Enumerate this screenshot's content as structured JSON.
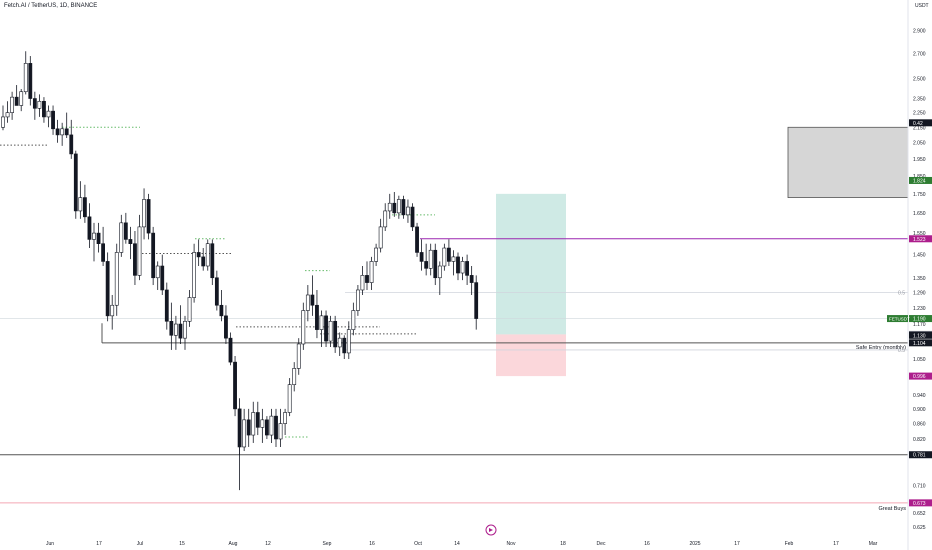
{
  "header": {
    "symbol_title": "Fetch.AI / TetherUS, 1D, BINANCE",
    "currency": "USDT"
  },
  "colors": {
    "bull": "#131722",
    "bear": "#131722",
    "long_profit": "#cfeae5",
    "long_loss": "#fbd7db",
    "supply_box": "#d6d6d6",
    "purple_line": "#9c27b0",
    "red_line": "#f4a6b4",
    "green_dotted": "#66bb6a",
    "price_tag": "#2e7d32",
    "magenta_tag": "#ad1e8c",
    "dark_tag": "#131722"
  },
  "chart_data": {
    "type": "candlestick",
    "x_tick_labels": [
      "Jun",
      "17",
      "Jul",
      "15",
      "Aug",
      "12",
      "Sep",
      "16",
      "Oct",
      "14",
      "Nov",
      "18",
      "Dec",
      "16",
      "2025",
      "17",
      "Feb",
      "17",
      "Mar"
    ],
    "y_tick_labels": [
      "2.900",
      "2.700",
      "2.500",
      "2.350",
      "2.250",
      "2.150",
      "2.050",
      "1.950",
      "1.850",
      "1.750",
      "1.650",
      "1.550",
      "1.450",
      "1.350",
      "1.290",
      "1.230",
      "1.170",
      "1.050",
      "0.940",
      "0.900",
      "0.860",
      "0.820",
      "0.710",
      "0.652",
      "0.625"
    ],
    "y_axis_scale": "log",
    "candles": [
      [
        2.15,
        2.3,
        2.13,
        2.22
      ],
      [
        2.22,
        2.33,
        2.18,
        2.25
      ],
      [
        2.25,
        2.4,
        2.2,
        2.36
      ],
      [
        2.36,
        2.45,
        2.3,
        2.3
      ],
      [
        2.3,
        2.42,
        2.26,
        2.4
      ],
      [
        2.4,
        2.72,
        2.38,
        2.62
      ],
      [
        2.62,
        2.68,
        2.3,
        2.35
      ],
      [
        2.35,
        2.4,
        2.2,
        2.28
      ],
      [
        2.28,
        2.38,
        2.22,
        2.33
      ],
      [
        2.33,
        2.36,
        2.18,
        2.22
      ],
      [
        2.22,
        2.3,
        2.15,
        2.26
      ],
      [
        2.26,
        2.3,
        2.1,
        2.14
      ],
      [
        2.14,
        2.2,
        2.05,
        2.1
      ],
      [
        2.1,
        2.18,
        2.03,
        2.14
      ],
      [
        2.14,
        2.25,
        2.08,
        2.1
      ],
      [
        2.1,
        2.2,
        1.95,
        1.98
      ],
      [
        1.98,
        2.0,
        1.62,
        1.66
      ],
      [
        1.66,
        1.82,
        1.62,
        1.73
      ],
      [
        1.73,
        1.8,
        1.6,
        1.63
      ],
      [
        1.63,
        1.7,
        1.48,
        1.52
      ],
      [
        1.52,
        1.6,
        1.42,
        1.55
      ],
      [
        1.55,
        1.6,
        1.46,
        1.5
      ],
      [
        1.5,
        1.58,
        1.4,
        1.42
      ],
      [
        1.42,
        1.46,
        1.18,
        1.2
      ],
      [
        1.2,
        1.28,
        1.15,
        1.24
      ],
      [
        1.24,
        1.5,
        1.2,
        1.46
      ],
      [
        1.46,
        1.64,
        1.44,
        1.6
      ],
      [
        1.6,
        1.65,
        1.5,
        1.52
      ],
      [
        1.52,
        1.58,
        1.43,
        1.5
      ],
      [
        1.5,
        1.56,
        1.32,
        1.36
      ],
      [
        1.36,
        1.64,
        1.34,
        1.58
      ],
      [
        1.58,
        1.78,
        1.52,
        1.72
      ],
      [
        1.72,
        1.75,
        1.52,
        1.55
      ],
      [
        1.55,
        1.58,
        1.32,
        1.35
      ],
      [
        1.35,
        1.42,
        1.3,
        1.4
      ],
      [
        1.4,
        1.45,
        1.28,
        1.3
      ],
      [
        1.3,
        1.33,
        1.15,
        1.18
      ],
      [
        1.18,
        1.25,
        1.08,
        1.13
      ],
      [
        1.13,
        1.2,
        1.08,
        1.17
      ],
      [
        1.17,
        1.24,
        1.1,
        1.12
      ],
      [
        1.12,
        1.2,
        1.08,
        1.18
      ],
      [
        1.18,
        1.3,
        1.16,
        1.27
      ],
      [
        1.27,
        1.5,
        1.25,
        1.46
      ],
      [
        1.46,
        1.52,
        1.4,
        1.44
      ],
      [
        1.44,
        1.48,
        1.38,
        1.4
      ],
      [
        1.4,
        1.52,
        1.38,
        1.5
      ],
      [
        1.5,
        1.52,
        1.32,
        1.35
      ],
      [
        1.35,
        1.38,
        1.22,
        1.24
      ],
      [
        1.24,
        1.3,
        1.18,
        1.2
      ],
      [
        1.2,
        1.24,
        1.1,
        1.12
      ],
      [
        1.12,
        1.14,
        1.03,
        1.04
      ],
      [
        1.04,
        1.06,
        0.88,
        0.9
      ],
      [
        0.9,
        0.93,
        0.78,
        0.8
      ],
      [
        0.8,
        0.9,
        0.79,
        0.87
      ],
      [
        0.87,
        0.9,
        0.8,
        0.83
      ],
      [
        0.83,
        0.92,
        0.81,
        0.89
      ],
      [
        0.89,
        0.92,
        0.83,
        0.85
      ],
      [
        0.85,
        0.9,
        0.81,
        0.87
      ],
      [
        0.87,
        0.88,
        0.82,
        0.83
      ],
      [
        0.83,
        0.9,
        0.81,
        0.88
      ],
      [
        0.88,
        0.9,
        0.8,
        0.82
      ],
      [
        0.82,
        0.9,
        0.8,
        0.86
      ],
      [
        0.86,
        0.9,
        0.83,
        0.89
      ],
      [
        0.89,
        0.99,
        0.88,
        0.97
      ],
      [
        0.97,
        1.04,
        0.95,
        1.02
      ],
      [
        1.02,
        1.12,
        1.0,
        1.1
      ],
      [
        1.1,
        1.25,
        1.08,
        1.22
      ],
      [
        1.22,
        1.32,
        1.18,
        1.28
      ],
      [
        1.28,
        1.36,
        1.2,
        1.24
      ],
      [
        1.24,
        1.3,
        1.12,
        1.15
      ],
      [
        1.15,
        1.22,
        1.09,
        1.2
      ],
      [
        1.2,
        1.22,
        1.09,
        1.11
      ],
      [
        1.11,
        1.2,
        1.09,
        1.18
      ],
      [
        1.18,
        1.2,
        1.07,
        1.09
      ],
      [
        1.09,
        1.14,
        1.06,
        1.12
      ],
      [
        1.12,
        1.13,
        1.05,
        1.07
      ],
      [
        1.07,
        1.18,
        1.05,
        1.15
      ],
      [
        1.15,
        1.25,
        1.13,
        1.22
      ],
      [
        1.22,
        1.32,
        1.2,
        1.3
      ],
      [
        1.3,
        1.4,
        1.28,
        1.36
      ],
      [
        1.36,
        1.42,
        1.3,
        1.33
      ],
      [
        1.33,
        1.44,
        1.3,
        1.42
      ],
      [
        1.42,
        1.5,
        1.4,
        1.48
      ],
      [
        1.48,
        1.62,
        1.46,
        1.58
      ],
      [
        1.58,
        1.7,
        1.56,
        1.66
      ],
      [
        1.66,
        1.75,
        1.62,
        1.7
      ],
      [
        1.7,
        1.76,
        1.63,
        1.65
      ],
      [
        1.65,
        1.74,
        1.62,
        1.72
      ],
      [
        1.72,
        1.74,
        1.62,
        1.64
      ],
      [
        1.64,
        1.72,
        1.6,
        1.68
      ],
      [
        1.68,
        1.7,
        1.56,
        1.58
      ],
      [
        1.58,
        1.6,
        1.44,
        1.46
      ],
      [
        1.46,
        1.52,
        1.38,
        1.42
      ],
      [
        1.42,
        1.5,
        1.36,
        1.39
      ],
      [
        1.39,
        1.5,
        1.36,
        1.47
      ],
      [
        1.47,
        1.5,
        1.32,
        1.35
      ],
      [
        1.35,
        1.42,
        1.28,
        1.4
      ],
      [
        1.4,
        1.5,
        1.38,
        1.48
      ],
      [
        1.48,
        1.52,
        1.4,
        1.42
      ],
      [
        1.42,
        1.47,
        1.36,
        1.44
      ],
      [
        1.44,
        1.46,
        1.34,
        1.37
      ],
      [
        1.37,
        1.44,
        1.34,
        1.42
      ],
      [
        1.42,
        1.45,
        1.32,
        1.36
      ],
      [
        1.36,
        1.4,
        1.28,
        1.33
      ],
      [
        1.33,
        1.36,
        1.15,
        1.19
      ]
    ],
    "long_position": {
      "entry": 1.133,
      "target": 1.75,
      "stop": 0.996
    },
    "supply_zone": {
      "low": 1.73,
      "high": 2.15
    },
    "horizontal_levels": [
      {
        "price": 1.523,
        "label": "",
        "color": "purple",
        "tag": "1.523"
      },
      {
        "price": 1.104,
        "label": "Safe Entry (monthly)",
        "color": "dark",
        "tag": "1.104"
      },
      {
        "price": 0.781,
        "label": "",
        "color": "dark",
        "tag": "0.781"
      },
      {
        "price": 0.673,
        "label": "Great Buys",
        "color": "red",
        "tag": "0.673"
      }
    ],
    "fib_labels": [
      {
        "price": 1.29,
        "text": "0.5"
      },
      {
        "price": 1.08,
        "text": "0.5"
      }
    ],
    "price_tags": [
      {
        "price": 2.18,
        "text": "0.42",
        "style": "dark"
      },
      {
        "price": 1.824,
        "text": "1.824",
        "style": "green"
      },
      {
        "price": 1.523,
        "text": "1.523",
        "style": "magenta"
      },
      {
        "price": 1.19,
        "text": "1.190",
        "style": "green",
        "symbol": "FETUSDT"
      },
      {
        "price": 1.133,
        "text": "1.133",
        "style": "gray"
      },
      {
        "price": 1.13,
        "text": "1.130",
        "style": "dark"
      },
      {
        "price": 1.104,
        "text": "1.104",
        "style": "dark"
      },
      {
        "price": 0.996,
        "text": "0.996",
        "style": "magenta"
      },
      {
        "price": 0.781,
        "text": "0.781",
        "style": "dark"
      },
      {
        "price": 0.673,
        "text": "0.673",
        "style": "magenta"
      }
    ]
  }
}
